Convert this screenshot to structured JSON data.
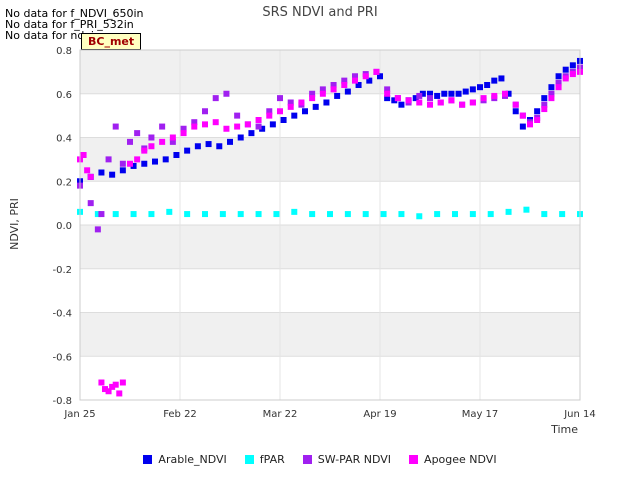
{
  "notices": [
    "No data for f_NDVI_650in",
    "No data for f_PRI_532in",
    "No data for ndvi"
  ],
  "badge": "BC_met",
  "chart_data": {
    "type": "scatter",
    "title": "SRS NDVI and PRI",
    "xlabel": "Time",
    "ylabel": "NDVI, PRI",
    "x_unit": "days since Jan 25",
    "xlim": [
      0,
      140
    ],
    "ylim": [
      -0.8,
      0.8
    ],
    "x_ticks": [
      {
        "label": "Jan 25",
        "x": 0
      },
      {
        "label": "Feb 22",
        "x": 28
      },
      {
        "label": "Mar 22",
        "x": 56
      },
      {
        "label": "Apr 19",
        "x": 84
      },
      {
        "label": "May 17",
        "x": 112
      },
      {
        "label": "Jun 14",
        "x": 140
      }
    ],
    "y_ticks": [
      {
        "label": "0.8",
        "y": 0.8
      },
      {
        "label": "0.6",
        "y": 0.6
      },
      {
        "label": "0.4",
        "y": 0.4
      },
      {
        "label": "0.2",
        "y": 0.2
      },
      {
        "label": "0.0",
        "y": 0.0
      },
      {
        "label": "-0.2",
        "y": -0.2
      },
      {
        "label": "-0.4",
        "y": -0.4
      },
      {
        "label": "-0.6",
        "y": -0.6
      },
      {
        "label": "-0.8",
        "y": -0.8
      }
    ],
    "series": [
      {
        "name": "Arable_NDVI",
        "color": "#0000ee",
        "x": [
          0,
          3,
          6,
          9,
          12,
          15,
          18,
          21,
          24,
          27,
          30,
          33,
          36,
          39,
          42,
          45,
          48,
          51,
          54,
          57,
          60,
          63,
          66,
          69,
          72,
          75,
          78,
          81,
          84,
          86,
          88,
          90,
          92,
          94,
          96,
          98,
          100,
          102,
          104,
          106,
          108,
          110,
          112,
          114,
          116,
          118,
          120,
          122,
          124,
          126,
          128,
          130,
          132,
          134,
          136,
          138,
          140
        ],
        "y": [
          0.2,
          0.22,
          0.24,
          0.23,
          0.25,
          0.27,
          0.28,
          0.29,
          0.3,
          0.32,
          0.34,
          0.36,
          0.37,
          0.36,
          0.38,
          0.4,
          0.42,
          0.44,
          0.46,
          0.48,
          0.5,
          0.52,
          0.54,
          0.56,
          0.59,
          0.61,
          0.64,
          0.66,
          0.68,
          0.58,
          0.57,
          0.55,
          0.57,
          0.58,
          0.6,
          0.6,
          0.59,
          0.6,
          0.6,
          0.6,
          0.61,
          0.62,
          0.63,
          0.64,
          0.66,
          0.67,
          0.6,
          0.52,
          0.45,
          0.48,
          0.52,
          0.58,
          0.63,
          0.68,
          0.71,
          0.73,
          0.75
        ]
      },
      {
        "name": "fPAR",
        "color": "#00ffff",
        "x": [
          0,
          5,
          10,
          15,
          20,
          25,
          30,
          35,
          40,
          45,
          50,
          55,
          60,
          65,
          70,
          75,
          80,
          85,
          90,
          95,
          100,
          105,
          110,
          115,
          120,
          125,
          130,
          135,
          140
        ],
        "y": [
          0.06,
          0.05,
          0.05,
          0.05,
          0.05,
          0.06,
          0.05,
          0.05,
          0.05,
          0.05,
          0.05,
          0.05,
          0.06,
          0.05,
          0.05,
          0.05,
          0.05,
          0.05,
          0.05,
          0.04,
          0.05,
          0.05,
          0.05,
          0.05,
          0.06,
          0.07,
          0.05,
          0.05,
          0.05
        ]
      },
      {
        "name": "SW-PAR NDVI",
        "color": "#a020f0",
        "x": [
          0,
          3,
          5,
          6,
          8,
          10,
          12,
          14,
          16,
          18,
          20,
          23,
          26,
          29,
          32,
          35,
          38,
          41,
          44,
          47,
          50,
          53,
          56,
          59,
          62,
          65,
          68,
          71,
          74,
          77,
          80,
          83,
          86,
          89,
          92,
          95,
          98,
          101,
          104,
          107,
          110,
          113,
          116,
          119,
          122,
          124,
          126,
          128,
          130,
          132,
          134,
          136,
          138,
          140
        ],
        "y": [
          0.18,
          0.1,
          -0.02,
          0.05,
          0.3,
          0.45,
          0.28,
          0.38,
          0.42,
          0.35,
          0.4,
          0.45,
          0.38,
          0.44,
          0.47,
          0.52,
          0.58,
          0.6,
          0.5,
          0.46,
          0.45,
          0.52,
          0.58,
          0.56,
          0.55,
          0.6,
          0.62,
          0.64,
          0.66,
          0.68,
          0.69,
          0.7,
          0.62,
          0.58,
          0.56,
          0.59,
          0.58,
          0.56,
          0.57,
          0.55,
          0.56,
          0.57,
          0.58,
          0.59,
          0.55,
          0.5,
          0.47,
          0.49,
          0.55,
          0.6,
          0.65,
          0.68,
          0.7,
          0.72
        ]
      },
      {
        "name": "Apogee NDVI",
        "color": "#ff00ff",
        "x": [
          0,
          1,
          2,
          3,
          6,
          7,
          8,
          9,
          10,
          11,
          12,
          14,
          16,
          18,
          20,
          23,
          26,
          29,
          32,
          35,
          38,
          41,
          44,
          47,
          50,
          53,
          56,
          59,
          62,
          65,
          68,
          71,
          74,
          77,
          80,
          83,
          86,
          89,
          92,
          95,
          98,
          101,
          104,
          107,
          110,
          113,
          116,
          119,
          122,
          124,
          126,
          128,
          130,
          132,
          134,
          136,
          138,
          140
        ],
        "y": [
          0.3,
          0.32,
          0.25,
          0.22,
          -0.72,
          -0.75,
          -0.76,
          -0.74,
          -0.73,
          -0.77,
          -0.72,
          0.28,
          0.3,
          0.34,
          0.36,
          0.38,
          0.4,
          0.42,
          0.45,
          0.46,
          0.47,
          0.44,
          0.45,
          0.46,
          0.48,
          0.5,
          0.52,
          0.54,
          0.56,
          0.58,
          0.6,
          0.62,
          0.64,
          0.66,
          0.68,
          0.7,
          0.6,
          0.58,
          0.57,
          0.56,
          0.55,
          0.56,
          0.57,
          0.55,
          0.56,
          0.58,
          0.59,
          0.6,
          0.55,
          0.5,
          0.46,
          0.48,
          0.53,
          0.58,
          0.63,
          0.67,
          0.69,
          0.7
        ]
      }
    ]
  }
}
